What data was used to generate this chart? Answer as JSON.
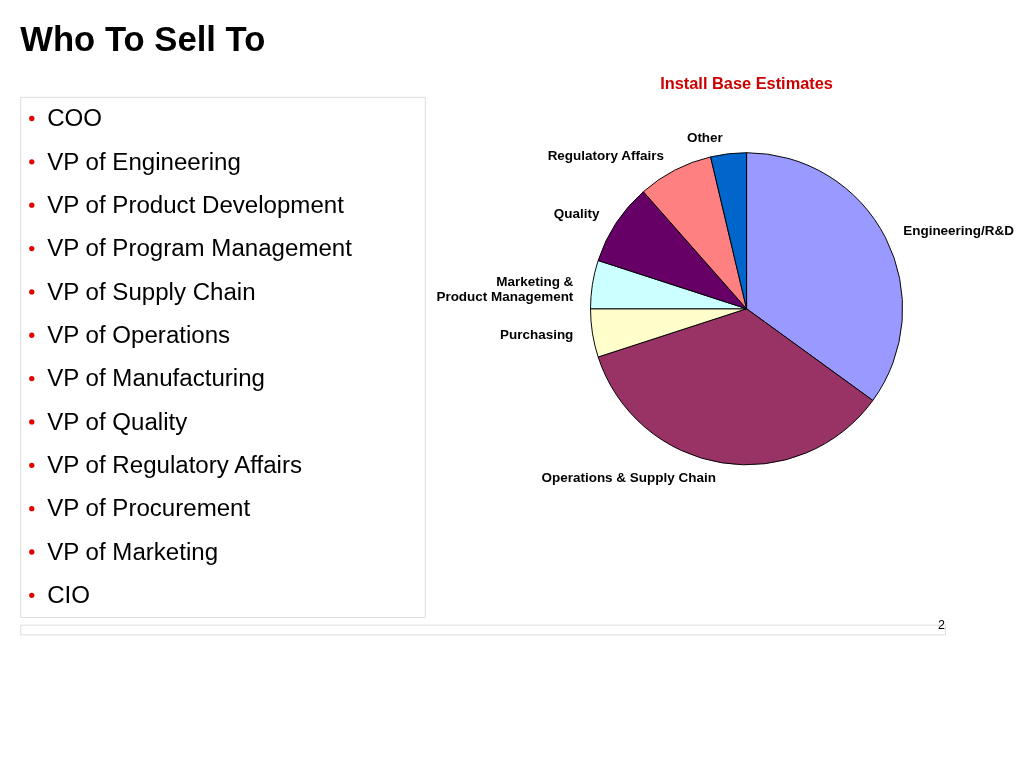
{
  "chart_data": [
    {
      "type": "other",
      "title": "Who To Sell To",
      "annotations": [
        "COO",
        "VP of Engineering",
        "VP of Product Development",
        "VP of Program Management",
        "VP of Supply Chain",
        "VP of Operations",
        "VP of Manufacturing",
        "VP of Quality",
        "VP of Regulatory Affairs",
        "VP of Procurement",
        "VP of Marketing",
        "CIO",
        "2"
      ]
    },
    {
      "type": "pie",
      "title": "Install Base Estimates",
      "categories": [
        "Engineering/R&D",
        "Operations & Supply Chain",
        "Purchasing",
        "Marketing &\nProduct Management",
        "Quality",
        "Regulatory Affairs",
        "Other"
      ],
      "values": [
        35,
        35,
        5,
        5,
        8.5,
        7.8,
        3.7
      ],
      "colors": [
        "#9999ff",
        "#993366",
        "#ffffcc",
        "#ccffff",
        "#660066",
        "#ff8080",
        "#0066cc"
      ]
    }
  ]
}
